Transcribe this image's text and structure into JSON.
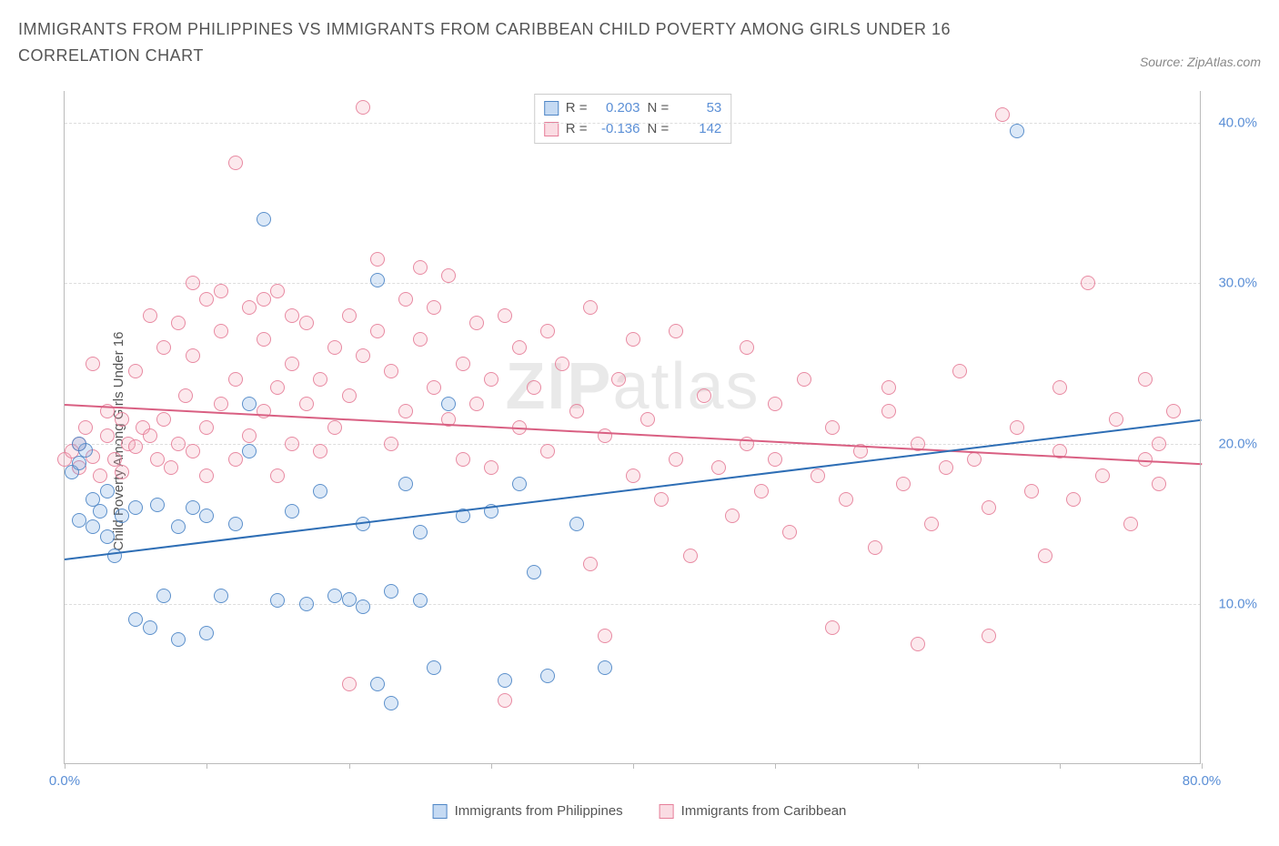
{
  "header": {
    "title": "IMMIGRANTS FROM PHILIPPINES VS IMMIGRANTS FROM CARIBBEAN CHILD POVERTY AMONG GIRLS UNDER 16 CORRELATION CHART",
    "source": "Source: ZipAtlas.com"
  },
  "ylabel": "Child Poverty Among Girls Under 16",
  "watermark": {
    "a": "ZIP",
    "b": "atlas"
  },
  "chart": {
    "type": "scatter",
    "background_color": "#ffffff",
    "grid_color": "#dddddd",
    "axis_color": "#bbbbbb",
    "xlim": [
      0,
      80
    ],
    "ylim": [
      0,
      42
    ],
    "xticks": [
      0,
      10,
      20,
      30,
      40,
      50,
      60,
      70,
      80
    ],
    "xtick_labels": {
      "0": "0.0%",
      "80": "80.0%"
    },
    "yticks": [
      10,
      20,
      30,
      40
    ],
    "ytick_labels": {
      "10": "10.0%",
      "20": "20.0%",
      "30": "30.0%",
      "40": "40.0%"
    },
    "marker_radius": 8,
    "marker_fill_opacity": 0.25,
    "marker_stroke_opacity": 0.9,
    "label_fontsize": 15,
    "tick_color": "#5b8fd6"
  },
  "series": {
    "philippines": {
      "label": "Immigrants from Philippines",
      "color": "#6fa3e0",
      "stroke": "#4f86c6",
      "trend_color": "#2e6eb5",
      "R": "0.203",
      "N": "53",
      "trend": {
        "x1": 0,
        "y1": 12.8,
        "x2": 80,
        "y2": 21.5
      },
      "points": [
        [
          0.5,
          18.2
        ],
        [
          1,
          18.8
        ],
        [
          1,
          15.2
        ],
        [
          1.5,
          19.6
        ],
        [
          2,
          16.5
        ],
        [
          2,
          14.8
        ],
        [
          2.5,
          15.8
        ],
        [
          3,
          17.0
        ],
        [
          3,
          14.2
        ],
        [
          3.5,
          13.0
        ],
        [
          4,
          15.5
        ],
        [
          5,
          9.0
        ],
        [
          5,
          16.0
        ],
        [
          6,
          8.5
        ],
        [
          6.5,
          16.2
        ],
        [
          7,
          10.5
        ],
        [
          8,
          14.8
        ],
        [
          8,
          7.8
        ],
        [
          9,
          16.0
        ],
        [
          10,
          15.5
        ],
        [
          10,
          8.2
        ],
        [
          11,
          10.5
        ],
        [
          12,
          15.0
        ],
        [
          13,
          22.5
        ],
        [
          13,
          19.5
        ],
        [
          14,
          34.0
        ],
        [
          15,
          10.2
        ],
        [
          16,
          15.8
        ],
        [
          17,
          10.0
        ],
        [
          18,
          17.0
        ],
        [
          19,
          10.5
        ],
        [
          20,
          10.3
        ],
        [
          21,
          15.0
        ],
        [
          21,
          9.8
        ],
        [
          22,
          30.2
        ],
        [
          22,
          5.0
        ],
        [
          23,
          10.8
        ],
        [
          23,
          3.8
        ],
        [
          24,
          17.5
        ],
        [
          25,
          14.5
        ],
        [
          25,
          10.2
        ],
        [
          26,
          6.0
        ],
        [
          27,
          22.5
        ],
        [
          28,
          15.5
        ],
        [
          30,
          15.8
        ],
        [
          31,
          5.2
        ],
        [
          32,
          17.5
        ],
        [
          33,
          12.0
        ],
        [
          34,
          5.5
        ],
        [
          36,
          15.0
        ],
        [
          38,
          6.0
        ],
        [
          67,
          39.5
        ],
        [
          1,
          20.0
        ]
      ]
    },
    "caribbean": {
      "label": "Immigrants from Caribbean",
      "color": "#f3a7b8",
      "stroke": "#e67f9a",
      "trend_color": "#d95f82",
      "R": "-0.136",
      "N": "142",
      "trend": {
        "x1": 0,
        "y1": 22.5,
        "x2": 80,
        "y2": 18.8
      },
      "points": [
        [
          0,
          19.0
        ],
        [
          0.5,
          19.5
        ],
        [
          1,
          20.0
        ],
        [
          1,
          18.5
        ],
        [
          1.5,
          21.0
        ],
        [
          2,
          19.2
        ],
        [
          2,
          25.0
        ],
        [
          2.5,
          18.0
        ],
        [
          3,
          20.5
        ],
        [
          3,
          22.0
        ],
        [
          3.5,
          19.0
        ],
        [
          4,
          21.5
        ],
        [
          4,
          18.2
        ],
        [
          4.5,
          20.0
        ],
        [
          5,
          24.5
        ],
        [
          5,
          19.8
        ],
        [
          5.5,
          21.0
        ],
        [
          6,
          28.0
        ],
        [
          6,
          20.5
        ],
        [
          6.5,
          19.0
        ],
        [
          7,
          26.0
        ],
        [
          7,
          21.5
        ],
        [
          7.5,
          18.5
        ],
        [
          8,
          27.5
        ],
        [
          8,
          20.0
        ],
        [
          8.5,
          23.0
        ],
        [
          9,
          25.5
        ],
        [
          9,
          19.5
        ],
        [
          10,
          29.0
        ],
        [
          10,
          21.0
        ],
        [
          10,
          18.0
        ],
        [
          11,
          27.0
        ],
        [
          11,
          22.5
        ],
        [
          12,
          24.0
        ],
        [
          12,
          19.0
        ],
        [
          12,
          37.5
        ],
        [
          13,
          28.5
        ],
        [
          13,
          20.5
        ],
        [
          14,
          26.5
        ],
        [
          14,
          22.0
        ],
        [
          15,
          29.5
        ],
        [
          15,
          23.5
        ],
        [
          15,
          18.0
        ],
        [
          16,
          25.0
        ],
        [
          16,
          20.0
        ],
        [
          17,
          27.5
        ],
        [
          17,
          22.5
        ],
        [
          18,
          24.0
        ],
        [
          18,
          19.5
        ],
        [
          19,
          26.0
        ],
        [
          19,
          21.0
        ],
        [
          20,
          28.0
        ],
        [
          20,
          23.0
        ],
        [
          20,
          5.0
        ],
        [
          21,
          25.5
        ],
        [
          21,
          41.0
        ],
        [
          22,
          27.0
        ],
        [
          22,
          31.5
        ],
        [
          23,
          24.5
        ],
        [
          23,
          20.0
        ],
        [
          24,
          29.0
        ],
        [
          24,
          22.0
        ],
        [
          25,
          26.5
        ],
        [
          25,
          31.0
        ],
        [
          26,
          28.5
        ],
        [
          26,
          23.5
        ],
        [
          27,
          30.5
        ],
        [
          27,
          21.5
        ],
        [
          28,
          25.0
        ],
        [
          28,
          19.0
        ],
        [
          29,
          27.5
        ],
        [
          29,
          22.5
        ],
        [
          30,
          24.0
        ],
        [
          30,
          18.5
        ],
        [
          31,
          28.0
        ],
        [
          31,
          4.0
        ],
        [
          32,
          26.0
        ],
        [
          32,
          21.0
        ],
        [
          33,
          23.5
        ],
        [
          34,
          27.0
        ],
        [
          34,
          19.5
        ],
        [
          35,
          25.0
        ],
        [
          36,
          22.0
        ],
        [
          37,
          28.5
        ],
        [
          37,
          12.5
        ],
        [
          38,
          20.5
        ],
        [
          38,
          8.0
        ],
        [
          39,
          24.0
        ],
        [
          40,
          26.5
        ],
        [
          40,
          18.0
        ],
        [
          41,
          21.5
        ],
        [
          42,
          16.5
        ],
        [
          43,
          19.0
        ],
        [
          43,
          27.0
        ],
        [
          44,
          13.0
        ],
        [
          45,
          23.0
        ],
        [
          46,
          18.5
        ],
        [
          47,
          15.5
        ],
        [
          48,
          20.0
        ],
        [
          48,
          26.0
        ],
        [
          49,
          17.0
        ],
        [
          50,
          22.5
        ],
        [
          50,
          19.0
        ],
        [
          51,
          14.5
        ],
        [
          52,
          24.0
        ],
        [
          53,
          18.0
        ],
        [
          54,
          8.5
        ],
        [
          54,
          21.0
        ],
        [
          55,
          16.5
        ],
        [
          56,
          19.5
        ],
        [
          57,
          13.5
        ],
        [
          58,
          22.0
        ],
        [
          58,
          23.5
        ],
        [
          59,
          17.5
        ],
        [
          60,
          20.0
        ],
        [
          60,
          7.5
        ],
        [
          61,
          15.0
        ],
        [
          62,
          18.5
        ],
        [
          63,
          24.5
        ],
        [
          64,
          19.0
        ],
        [
          65,
          16.0
        ],
        [
          65,
          8.0
        ],
        [
          66,
          40.5
        ],
        [
          67,
          21.0
        ],
        [
          68,
          17.0
        ],
        [
          69,
          13.0
        ],
        [
          70,
          23.5
        ],
        [
          70,
          19.5
        ],
        [
          71,
          16.5
        ],
        [
          72,
          30.0
        ],
        [
          73,
          18.0
        ],
        [
          74,
          21.5
        ],
        [
          75,
          15.0
        ],
        [
          76,
          19.0
        ],
        [
          76,
          24.0
        ],
        [
          77,
          17.5
        ],
        [
          77,
          20.0
        ],
        [
          78,
          22.0
        ],
        [
          14,
          29.0
        ],
        [
          16,
          28.0
        ],
        [
          9,
          30.0
        ],
        [
          11,
          29.5
        ]
      ]
    }
  },
  "stats_labels": {
    "R": "R =",
    "N": "N ="
  }
}
